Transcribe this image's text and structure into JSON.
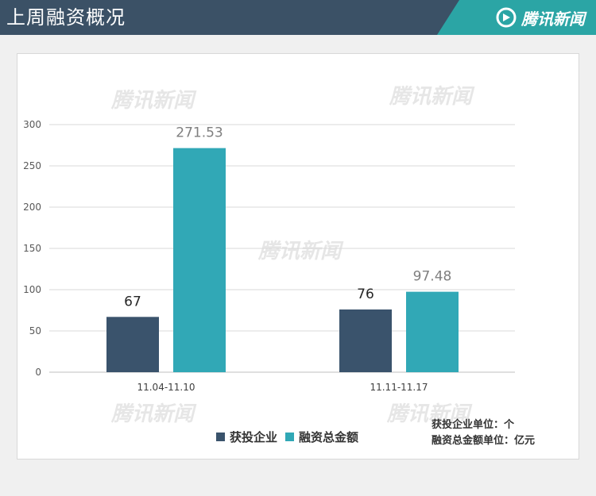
{
  "header": {
    "title": "上周融资概况",
    "brand": "腾讯新闻"
  },
  "watermark_text": "腾讯新闻",
  "legend": {
    "items": [
      {
        "label": "获投企业",
        "color": "#3a536c"
      },
      {
        "label": "融资总金额",
        "color": "#31a8b6"
      }
    ]
  },
  "units": {
    "line1": "获投企业单位：个",
    "line2": "融资总金额单位：亿元"
  },
  "colors": {
    "header_bg": "#3b5166",
    "brand_bg": "#2ba5a5",
    "series_1": "#3a536c",
    "series_2": "#31a8b6"
  },
  "chart_data": {
    "type": "bar",
    "categories": [
      "11.04-11.10",
      "11.11-11.17"
    ],
    "series": [
      {
        "name": "获投企业",
        "values": [
          67,
          76
        ],
        "color": "#3a536c"
      },
      {
        "name": "融资总金额",
        "values": [
          271.53,
          97.48
        ],
        "color": "#31a8b6"
      }
    ],
    "data_labels": [
      [
        "67",
        "76"
      ],
      [
        "271.53",
        "97.48"
      ]
    ],
    "yticks": [
      0,
      50,
      100,
      150,
      200,
      250,
      300
    ],
    "ylim": [
      0,
      300
    ],
    "grid": true,
    "legend_position": "bottom"
  }
}
